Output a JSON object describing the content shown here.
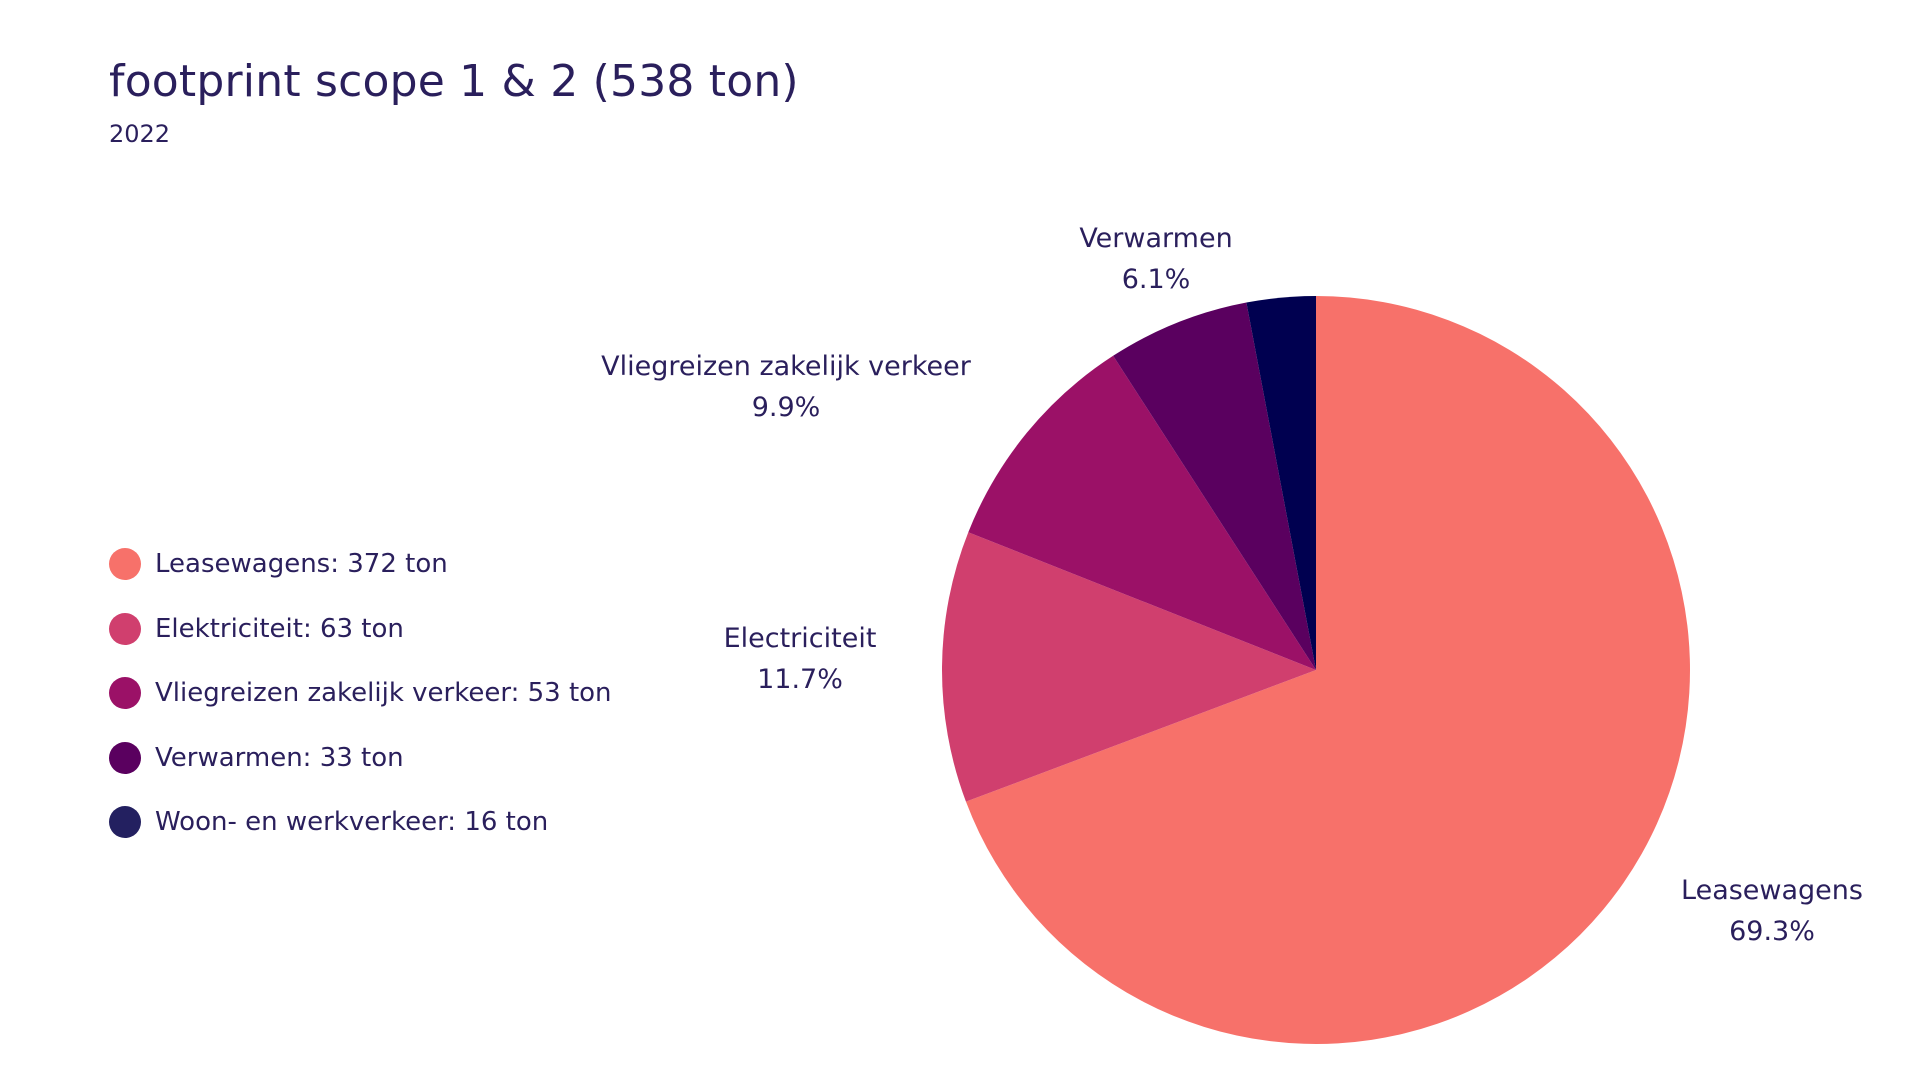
{
  "header": {
    "title": "footprint scope 1 & 2 (538 ton)",
    "subtitle": "2022"
  },
  "legend": {
    "items": [
      {
        "label": "Leasewagens: 372 ton",
        "color": "#f7716a"
      },
      {
        "label": "Elektriciteit: 63 ton",
        "color": "#d03f6e"
      },
      {
        "label": "Vliegreizen zakelijk verkeer: 53 ton",
        "color": "#9b1167"
      },
      {
        "label": "Verwarmen: 33 ton",
        "color": "#5a005f"
      },
      {
        "label": "Woon- en werkverkeer: 16 ton",
        "color": "#232060"
      }
    ]
  },
  "chart_data": {
    "type": "pie",
    "title": "footprint scope 1 & 2 (538 ton)",
    "subtitle": "2022",
    "legend_position": "left",
    "slices": [
      {
        "name": "Leasewagens",
        "value": 372,
        "percent_label": "69.3%",
        "color": "#f7716a",
        "show_label": true
      },
      {
        "name": "Electriciteit",
        "value": 63,
        "percent_label": "11.7%",
        "color": "#d03f6e",
        "show_label": true
      },
      {
        "name": "Vliegreizen zakelijk verkeer",
        "value": 53,
        "percent_label": "9.9%",
        "color": "#9b1167",
        "show_label": true
      },
      {
        "name": "Verwarmen",
        "value": 33,
        "percent_label": "6.1%",
        "color": "#5a005f",
        "show_label": true
      },
      {
        "name": "Woon- en werkverkeer",
        "value": 16,
        "percent_label": "",
        "color": "#000050",
        "show_label": false
      }
    ]
  }
}
